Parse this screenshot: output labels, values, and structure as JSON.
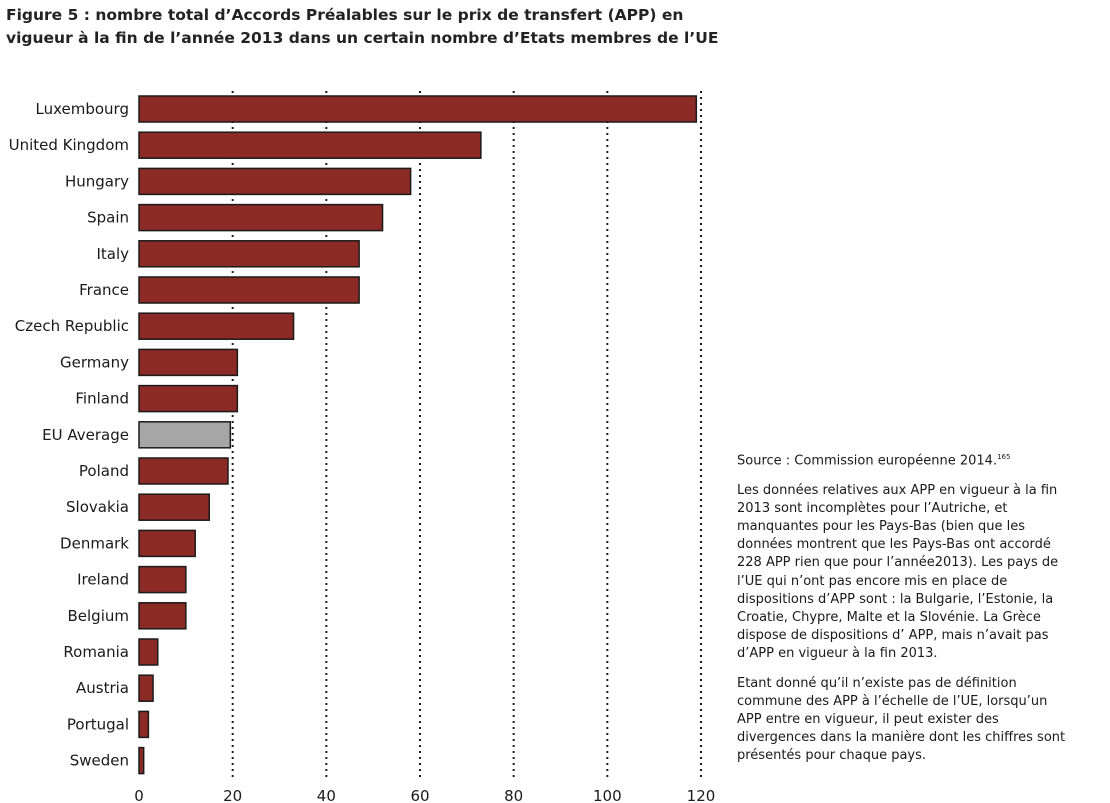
{
  "chart_data": {
    "type": "bar",
    "orientation": "horizontal",
    "title_lines": [
      "Figure 5 : nombre total d’Accords Préalables sur le prix de transfert (APP) en",
      "vigueur à la fin de l’année 2013 dans un certain nombre d’Etats membres de l’UE"
    ],
    "categories": [
      "Luxembourg",
      "United Kingdom",
      "Hungary",
      "Spain",
      "Italy",
      "France",
      "Czech Republic",
      "Germany",
      "Finland",
      "EU Average",
      "Poland",
      "Slovakia",
      "Denmark",
      "Ireland",
      "Belgium",
      "Romania",
      "Austria",
      "Portugal",
      "Sweden"
    ],
    "values": [
      119,
      73,
      58,
      52,
      47,
      47,
      33,
      21,
      21,
      19.5,
      19,
      15,
      12,
      10,
      10,
      4,
      3,
      2,
      1
    ],
    "xlim": [
      0,
      120
    ],
    "xticks": [
      "0",
      "20",
      "40",
      "60",
      "80",
      "100",
      "120"
    ],
    "grid": "vertical dotted",
    "highlight_category": "EU Average",
    "colors": {
      "bar": "#8c2a26",
      "highlight": "#a6a6a6",
      "outline": "#1a1a1a"
    }
  },
  "notes": {
    "source": "Source : Commission européenne 2014.",
    "source_ref": "165",
    "paragraph1": "Les données relatives aux APP en vigueur à la fin 2013 sont incomplètes pour l’Autriche, et manquantes pour les Pays-Bas (bien que les données montrent que les Pays-Bas ont accordé 228 APP rien que pour l’année2013). Les pays de l’UE qui n’ont pas encore mis en place de dispositions d’APP sont : la Bulgarie, l’Estonie, la Croatie, Chypre, Malte et la Slovénie. La Grèce dispose de dispositions d’ APP, mais n’avait pas d’APP en vigueur à la fin 2013.",
    "paragraph2": "Etant donné qu’il n’existe pas de définition commune des APP à l’échelle de l’UE, lorsqu’un APP entre en vigueur, il peut exister des divergences dans la manière dont les chiffres sont présentés pour chaque pays."
  }
}
